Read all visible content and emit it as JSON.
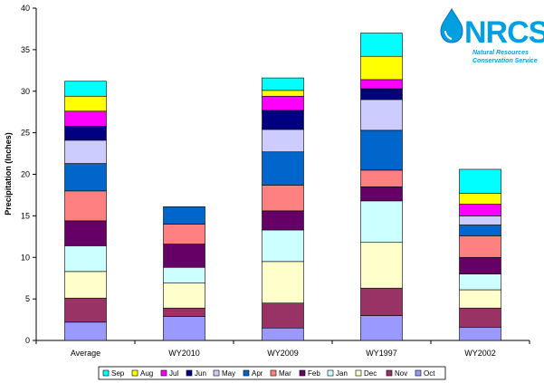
{
  "logo": {
    "brand": "NRCS",
    "subtitle": [
      "Natural Resources",
      "Conservation Service"
    ]
  },
  "chart_data": {
    "type": "bar",
    "stacked": true,
    "title": "",
    "xlabel": "",
    "ylabel": "Precipitation (Inches)",
    "ylim": [
      0,
      40
    ],
    "yticks": [
      0,
      5,
      10,
      15,
      20,
      25,
      30,
      35,
      40
    ],
    "grid": false,
    "legend_position": "bottom",
    "categories": [
      "Average",
      "WY2010",
      "WY2009",
      "WY1997",
      "WY2002"
    ],
    "series": [
      {
        "name": "Oct",
        "color": "#9999FF",
        "values": [
          2.2,
          2.9,
          1.5,
          3.0,
          1.6
        ]
      },
      {
        "name": "Nov",
        "color": "#993366",
        "values": [
          2.9,
          1.0,
          3.0,
          3.3,
          2.3
        ]
      },
      {
        "name": "Dec",
        "color": "#FFFFCC",
        "values": [
          3.2,
          3.0,
          5.0,
          5.5,
          2.2
        ]
      },
      {
        "name": "Jan",
        "color": "#CCFFFF",
        "values": [
          3.1,
          1.9,
          3.8,
          5.0,
          1.9
        ]
      },
      {
        "name": "Feb",
        "color": "#660066",
        "values": [
          3.0,
          2.8,
          2.3,
          1.7,
          2.0
        ]
      },
      {
        "name": "Mar",
        "color": "#FF8080",
        "values": [
          3.6,
          2.4,
          3.1,
          2.0,
          2.6
        ]
      },
      {
        "name": "Apr",
        "color": "#0066CC",
        "values": [
          3.3,
          2.1,
          4.0,
          4.8,
          1.3
        ]
      },
      {
        "name": "May",
        "color": "#CCCCFF",
        "values": [
          2.8,
          0.0,
          2.7,
          3.7,
          1.1
        ]
      },
      {
        "name": "Jun",
        "color": "#000080",
        "values": [
          1.7,
          0.0,
          2.3,
          1.3,
          0.0
        ]
      },
      {
        "name": "Jul",
        "color": "#FF00FF",
        "values": [
          1.8,
          0.0,
          1.7,
          1.1,
          1.4
        ]
      },
      {
        "name": "Aug",
        "color": "#FFFF00",
        "values": [
          1.8,
          0.0,
          0.7,
          2.8,
          1.3
        ]
      },
      {
        "name": "Sep",
        "color": "#00FFFF",
        "values": [
          1.8,
          0.0,
          1.5,
          2.8,
          2.9
        ]
      }
    ]
  }
}
